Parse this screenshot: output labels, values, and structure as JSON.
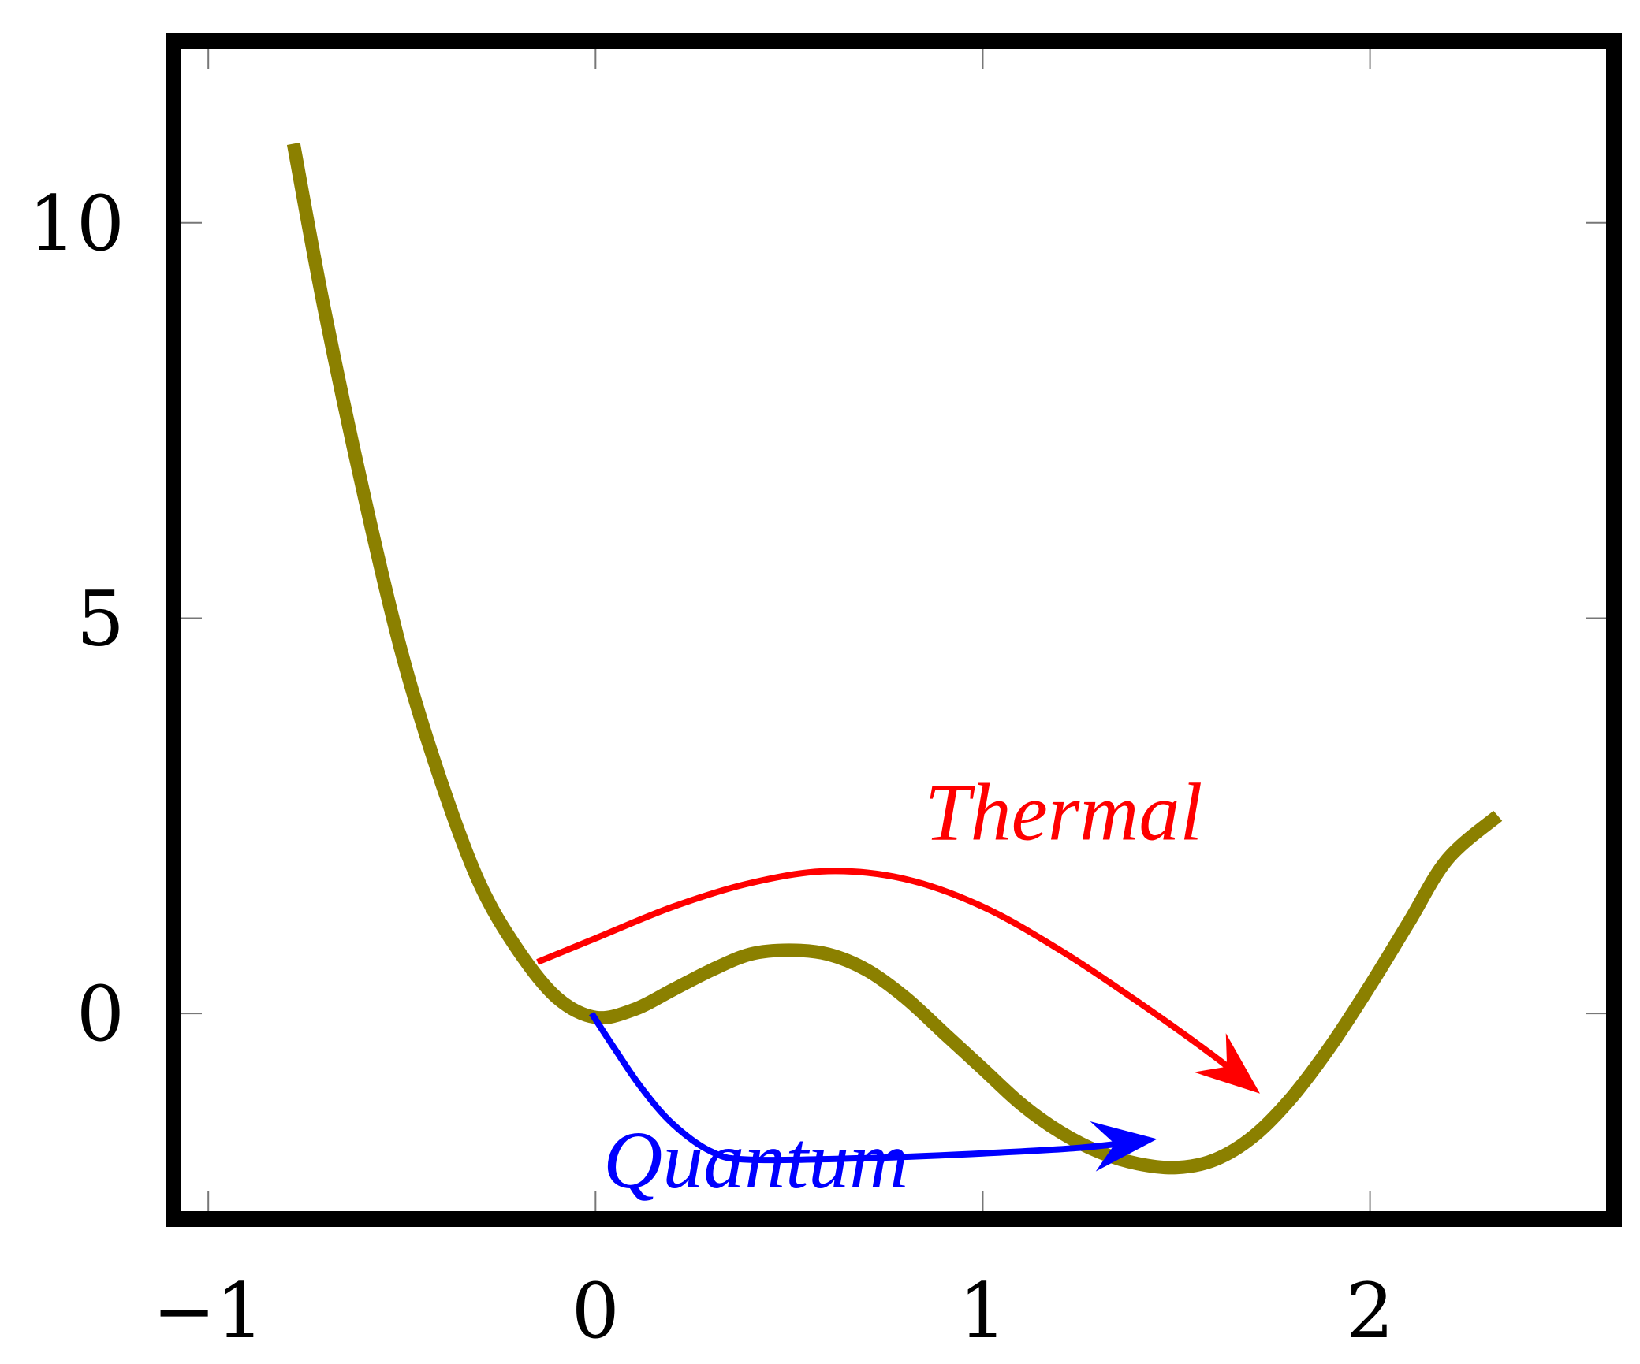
{
  "chart_data": {
    "type": "line",
    "title": "",
    "xlabel": "",
    "ylabel": "",
    "xlim": [
      -1.09,
      2.63
    ],
    "ylim": [
      -2.6,
      12.3
    ],
    "grid": false,
    "x_ticks": [
      {
        "value": -1,
        "label": "−1"
      },
      {
        "value": 0,
        "label": "0"
      },
      {
        "value": 1,
        "label": "1"
      },
      {
        "value": 2,
        "label": "2"
      }
    ],
    "y_ticks": [
      {
        "value": 0,
        "label": "0"
      },
      {
        "value": 5,
        "label": "5"
      },
      {
        "value": 10,
        "label": "10"
      }
    ],
    "series": [
      {
        "name": "",
        "color": "#8b8000",
        "x": [
          -0.78,
          -0.7,
          -0.6,
          -0.5,
          -0.4,
          -0.3,
          -0.2,
          -0.1,
          0.0,
          0.1,
          0.2,
          0.3,
          0.4,
          0.5,
          0.6,
          0.7,
          0.8,
          0.9,
          1.0,
          1.1,
          1.2,
          1.3,
          1.4,
          1.5,
          1.6,
          1.7,
          1.8,
          1.9,
          2.0,
          2.1,
          2.2,
          2.33
        ],
        "y": [
          11.0,
          8.9,
          6.6,
          4.55,
          2.95,
          1.65,
          0.8,
          0.2,
          -0.05,
          0.05,
          0.3,
          0.55,
          0.75,
          0.8,
          0.75,
          0.55,
          0.2,
          -0.25,
          -0.7,
          -1.15,
          -1.5,
          -1.75,
          -1.9,
          -1.95,
          -1.85,
          -1.55,
          -1.05,
          -0.4,
          0.35,
          1.15,
          1.95,
          2.5
        ]
      }
    ],
    "annotations": [
      {
        "text": "Thermal",
        "color": "#ff0000",
        "label_pos": [
          0.85,
          2.2
        ],
        "path": [
          [
            -0.15,
            0.65
          ],
          [
            0.0,
            0.95
          ],
          [
            0.2,
            1.35
          ],
          [
            0.4,
            1.65
          ],
          [
            0.6,
            1.8
          ],
          [
            0.8,
            1.7
          ],
          [
            1.0,
            1.35
          ],
          [
            1.2,
            0.8
          ],
          [
            1.4,
            0.15
          ],
          [
            1.6,
            -0.55
          ],
          [
            1.7,
            -0.95
          ]
        ]
      },
      {
        "text": "Quantum",
        "color": "#0000ff",
        "label_pos": [
          0.02,
          -2.2
        ],
        "path": [
          [
            -0.01,
            0.0
          ],
          [
            0.05,
            -0.45
          ],
          [
            0.12,
            -0.95
          ],
          [
            0.2,
            -1.4
          ],
          [
            0.3,
            -1.75
          ],
          [
            0.4,
            -1.85
          ],
          [
            0.7,
            -1.83
          ],
          [
            1.0,
            -1.77
          ],
          [
            1.25,
            -1.7
          ],
          [
            1.43,
            -1.6
          ]
        ]
      }
    ]
  }
}
